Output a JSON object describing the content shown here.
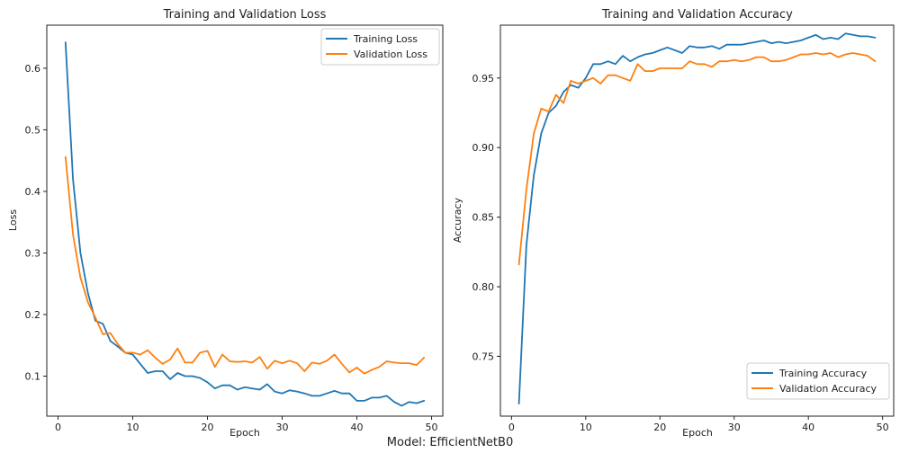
{
  "figure": {
    "suptitle": "Model: EfficientNetB0"
  },
  "chart_data": [
    {
      "type": "line",
      "title": "Training and Validation Loss",
      "xlabel": "Epoch",
      "ylabel": "Loss",
      "xlim": [
        -1.5,
        51.5
      ],
      "ylim": [
        0.035,
        0.67
      ],
      "xticks": [
        0,
        10,
        20,
        30,
        40,
        50
      ],
      "yticks": [
        0.1,
        0.2,
        0.3,
        0.4,
        0.5,
        0.6
      ],
      "ytick_labels": [
        "0.1",
        "0.2",
        "0.3",
        "0.4",
        "0.5",
        "0.6"
      ],
      "legend_position": "top-right",
      "grid": false,
      "x": [
        1,
        2,
        3,
        4,
        5,
        6,
        7,
        8,
        9,
        10,
        11,
        12,
        13,
        14,
        15,
        16,
        17,
        18,
        19,
        20,
        21,
        22,
        23,
        24,
        25,
        26,
        27,
        28,
        29,
        30,
        31,
        32,
        33,
        34,
        35,
        36,
        37,
        38,
        39,
        40,
        41,
        42,
        43,
        44,
        45,
        46,
        47,
        48,
        49
      ],
      "series": [
        {
          "name": "Training Loss",
          "color": "#1f77b4",
          "values": [
            0.642,
            0.42,
            0.3,
            0.235,
            0.19,
            0.185,
            0.157,
            0.148,
            0.138,
            0.135,
            0.12,
            0.105,
            0.108,
            0.108,
            0.095,
            0.105,
            0.1,
            0.1,
            0.097,
            0.09,
            0.08,
            0.085,
            0.085,
            0.078,
            0.082,
            0.08,
            0.078,
            0.087,
            0.075,
            0.072,
            0.077,
            0.075,
            0.072,
            0.068,
            0.068,
            0.072,
            0.076,
            0.072,
            0.072,
            0.06,
            0.06,
            0.065,
            0.065,
            0.068,
            0.058,
            0.052,
            0.058,
            0.056,
            0.06
          ]
        },
        {
          "name": "Validation Loss",
          "color": "#ff7f0e",
          "values": [
            0.456,
            0.33,
            0.26,
            0.22,
            0.195,
            0.168,
            0.17,
            0.152,
            0.138,
            0.138,
            0.135,
            0.142,
            0.13,
            0.12,
            0.127,
            0.145,
            0.122,
            0.122,
            0.138,
            0.141,
            0.115,
            0.135,
            0.124,
            0.123,
            0.124,
            0.122,
            0.131,
            0.112,
            0.125,
            0.121,
            0.125,
            0.121,
            0.108,
            0.122,
            0.12,
            0.125,
            0.135,
            0.12,
            0.106,
            0.114,
            0.104,
            0.11,
            0.115,
            0.124,
            0.122,
            0.121,
            0.121,
            0.118,
            0.13
          ]
        }
      ]
    },
    {
      "type": "line",
      "title": "Training and Validation Accuracy",
      "xlabel": "Epoch",
      "ylabel": "Accuracy",
      "xlim": [
        -1.5,
        51.5
      ],
      "ylim": [
        0.707,
        0.988
      ],
      "xticks": [
        0,
        10,
        20,
        30,
        40,
        50
      ],
      "yticks": [
        0.75,
        0.8,
        0.85,
        0.9,
        0.95
      ],
      "ytick_labels": [
        "0.75",
        "0.80",
        "0.85",
        "0.90",
        "0.95"
      ],
      "legend_position": "bottom-right",
      "grid": false,
      "x": [
        1,
        2,
        3,
        4,
        5,
        6,
        7,
        8,
        9,
        10,
        11,
        12,
        13,
        14,
        15,
        16,
        17,
        18,
        19,
        20,
        21,
        22,
        23,
        24,
        25,
        26,
        27,
        28,
        29,
        30,
        31,
        32,
        33,
        34,
        35,
        36,
        37,
        38,
        39,
        40,
        41,
        42,
        43,
        44,
        45,
        46,
        47,
        48,
        49
      ],
      "series": [
        {
          "name": "Training Accuracy",
          "color": "#1f77b4",
          "values": [
            0.716,
            0.83,
            0.88,
            0.91,
            0.925,
            0.93,
            0.94,
            0.945,
            0.943,
            0.95,
            0.96,
            0.96,
            0.962,
            0.96,
            0.966,
            0.962,
            0.965,
            0.967,
            0.968,
            0.97,
            0.972,
            0.97,
            0.968,
            0.973,
            0.972,
            0.972,
            0.973,
            0.971,
            0.974,
            0.974,
            0.974,
            0.975,
            0.976,
            0.977,
            0.975,
            0.976,
            0.975,
            0.976,
            0.977,
            0.979,
            0.981,
            0.978,
            0.979,
            0.978,
            0.982,
            0.981,
            0.98,
            0.98,
            0.979
          ]
        },
        {
          "name": "Validation Accuracy",
          "color": "#ff7f0e",
          "values": [
            0.816,
            0.87,
            0.91,
            0.928,
            0.926,
            0.938,
            0.932,
            0.948,
            0.946,
            0.948,
            0.95,
            0.946,
            0.952,
            0.952,
            0.95,
            0.948,
            0.96,
            0.955,
            0.955,
            0.957,
            0.957,
            0.957,
            0.957,
            0.962,
            0.96,
            0.96,
            0.958,
            0.962,
            0.962,
            0.963,
            0.962,
            0.963,
            0.965,
            0.965,
            0.962,
            0.962,
            0.963,
            0.965,
            0.967,
            0.967,
            0.968,
            0.967,
            0.968,
            0.965,
            0.967,
            0.968,
            0.967,
            0.966,
            0.962
          ]
        }
      ]
    }
  ]
}
